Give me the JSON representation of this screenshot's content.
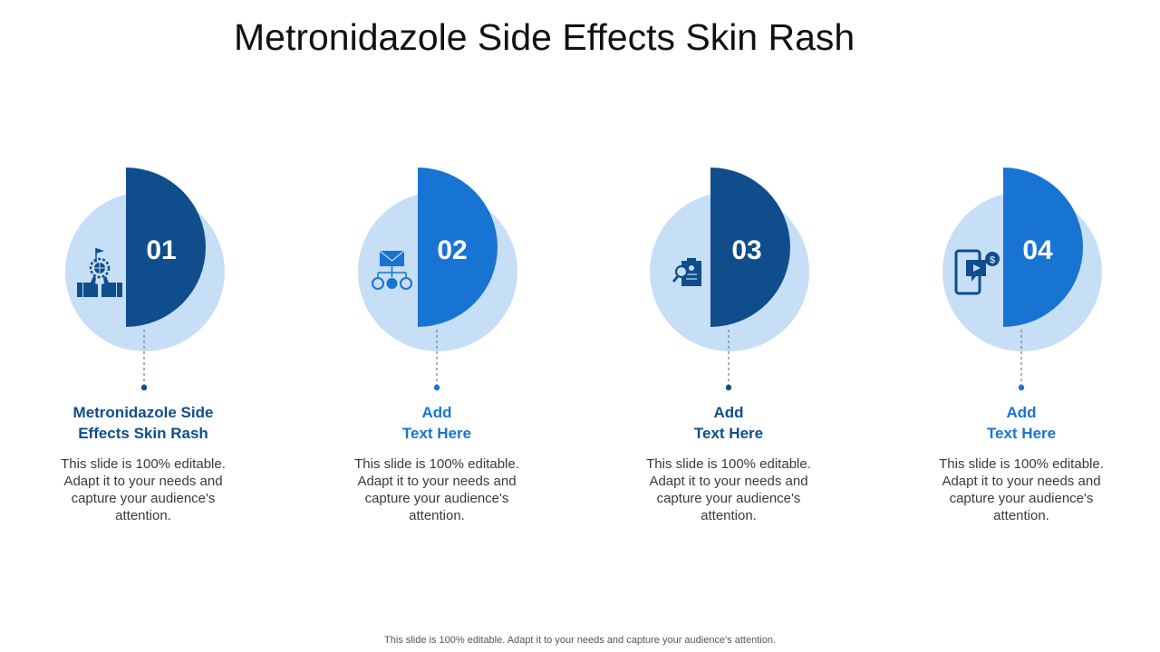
{
  "title": "Metronidazole Side Effects Skin Rash",
  "colors": {
    "dark_blue": "#0f4d8c",
    "bright_blue": "#1874d2",
    "light_blue": "#c6def6",
    "heading_dark": "#0f4d8c",
    "heading_bright": "#1874d2"
  },
  "steps": [
    {
      "number": "01",
      "heading": "Metronidazole Side\nEffects Skin Rash",
      "description": "This slide is 100% editable. Adapt it to your needs and capture your audience's attention.",
      "icon": "thumbs-up-globe-icon",
      "accent": "dark"
    },
    {
      "number": "02",
      "heading": "Add\nText Here",
      "description": "This slide is 100% editable. Adapt it to your needs and capture your audience's attention.",
      "icon": "email-network-icon",
      "accent": "bright"
    },
    {
      "number": "03",
      "heading": "Add\nText Here",
      "description": "This slide is 100% editable. Adapt it to your needs and capture your audience's attention.",
      "icon": "clipboard-search-icon",
      "accent": "dark"
    },
    {
      "number": "04",
      "heading": "Add\nText Here",
      "description": "This slide is 100% editable. Adapt it to your needs and capture your audience's attention.",
      "icon": "mobile-video-dollar-icon",
      "accent": "bright"
    }
  ],
  "footer": "This slide is 100% editable. Adapt it to your needs and capture your audience's attention."
}
